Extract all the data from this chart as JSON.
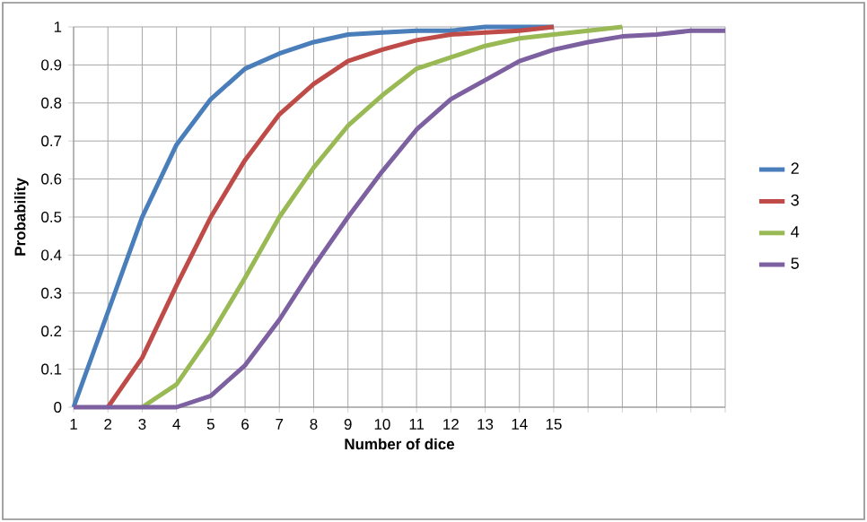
{
  "chart_data": {
    "type": "line",
    "xlabel": "Number of dice",
    "ylabel": "Probability",
    "categories": [
      "1",
      "2",
      "3",
      "4",
      "5",
      "6",
      "7",
      "8",
      "9",
      "10",
      "11",
      "12",
      "13",
      "14",
      "15",
      null,
      null,
      null,
      null,
      null
    ],
    "series": [
      {
        "name": "2",
        "color": "#4a7ebb",
        "values": [
          0,
          0.25,
          0.5,
          0.69,
          0.81,
          0.89,
          0.93,
          0.96,
          0.98,
          0.985,
          0.99,
          0.99,
          1,
          1,
          1,
          null,
          null,
          null,
          null,
          null
        ]
      },
      {
        "name": "3",
        "color": "#be4b48",
        "values": [
          null,
          0,
          0.13,
          0.32,
          0.5,
          0.65,
          0.77,
          0.85,
          0.91,
          0.94,
          0.965,
          0.98,
          0.985,
          0.99,
          1,
          null,
          null,
          null,
          null,
          null
        ]
      },
      {
        "name": "4",
        "color": "#98b954",
        "values": [
          null,
          null,
          0,
          0.06,
          0.19,
          0.34,
          0.5,
          0.63,
          0.74,
          0.82,
          0.89,
          0.92,
          0.95,
          0.97,
          0.98,
          0.99,
          1,
          null,
          null,
          null
        ]
      },
      {
        "name": "5",
        "color": "#7d60a0",
        "values": [
          0,
          0,
          0,
          0,
          0.03,
          0.11,
          0.23,
          0.37,
          0.5,
          0.62,
          0.73,
          0.81,
          0.86,
          0.91,
          0.94,
          0.96,
          0.975,
          0.98,
          0.99,
          0.99
        ]
      }
    ],
    "ylim": [
      0,
      1
    ],
    "yticks": [
      0,
      0.1,
      0.2,
      0.3,
      0.4,
      0.5,
      0.6,
      0.7,
      0.8,
      0.9,
      1
    ],
    "grid": true,
    "legend": "right",
    "marker": "none",
    "line_style": "solid"
  }
}
